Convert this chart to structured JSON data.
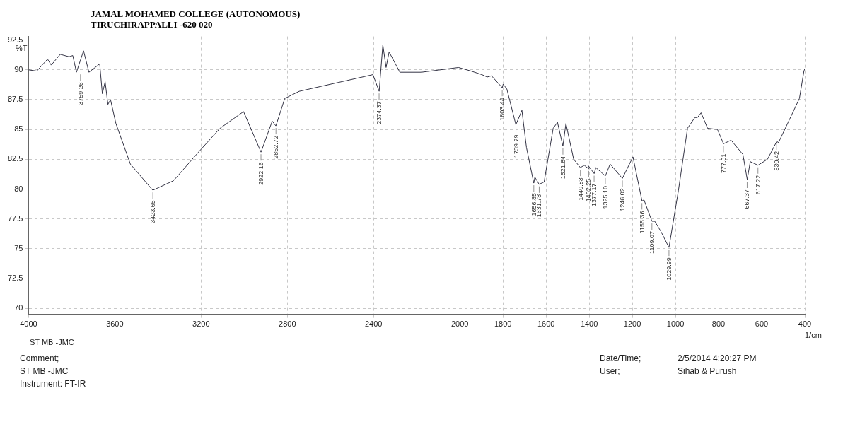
{
  "chart_data": {
    "type": "line",
    "title": "JAMAL MOHAMED COLLEGE (AUTONOMOUS)",
    "subtitle": "TIRUCHIRAPPALLI -620 020",
    "xlabel": "1/cm",
    "ylabel": "%T",
    "xlim": [
      4000,
      400
    ],
    "xticks": [
      4000,
      3600,
      3200,
      2800,
      2400,
      2000,
      1800,
      1600,
      1400,
      1200,
      1000,
      800,
      600,
      400
    ],
    "ylim": [
      69.5,
      92.8
    ],
    "yticks": [
      70,
      72.5,
      75,
      77.5,
      80,
      82.5,
      85,
      87.5,
      90,
      92.5
    ],
    "grid": true,
    "legend": false,
    "marker": "none",
    "line_style": "solid",
    "series": [
      {
        "color": "#333344",
        "x": [
          4000,
          3962,
          3912,
          3895,
          3853,
          3812,
          3795,
          3778,
          3745,
          3720,
          3670,
          3658,
          3645,
          3632,
          3620,
          3595,
          3528,
          3424,
          3328,
          3212,
          3112,
          3003,
          2922,
          2870,
          2853,
          2812,
          2745,
          2403,
          2374,
          2357,
          2342,
          2328,
          2278,
          2178,
          2006,
          1948,
          1898,
          1873,
          1853,
          1803,
          1799,
          1782,
          1740,
          1712,
          1691,
          1657,
          1652,
          1632,
          1609,
          1567,
          1547,
          1522,
          1508,
          1472,
          1441,
          1423,
          1402,
          1406,
          1377,
          1369,
          1325,
          1303,
          1246,
          1197,
          1155,
          1146,
          1109,
          1096,
          1066,
          1030,
          986,
          944,
          910,
          898,
          881,
          851,
          805,
          777,
          742,
          687,
          667,
          653,
          617,
          573,
          530,
          522,
          472,
          425,
          404,
          400
        ],
        "values": [
          90.0,
          89.9,
          90.9,
          90.4,
          91.3,
          91.1,
          91.2,
          89.8,
          91.6,
          89.8,
          90.5,
          88.0,
          89.0,
          87.1,
          87.5,
          85.5,
          82.1,
          79.9,
          80.7,
          83.1,
          85.1,
          86.5,
          83.1,
          85.7,
          85.3,
          87.6,
          88.2,
          89.6,
          88.2,
          92.1,
          90.2,
          91.5,
          89.8,
          89.8,
          90.2,
          89.9,
          89.6,
          89.4,
          89.5,
          88.5,
          88.8,
          88.4,
          85.4,
          86.6,
          83.5,
          80.5,
          81.0,
          80.4,
          80.6,
          85.1,
          85.6,
          83.6,
          85.5,
          82.5,
          81.8,
          82.0,
          81.7,
          82.0,
          81.3,
          81.8,
          81.1,
          82.1,
          80.9,
          82.7,
          79.0,
          79.1,
          77.3,
          77.3,
          76.4,
          75.1,
          79.9,
          85.1,
          86.0,
          86.0,
          86.4,
          85.1,
          85.0,
          83.8,
          84.1,
          82.9,
          80.8,
          82.3,
          82.0,
          82.5,
          84.0,
          83.9,
          85.8,
          87.6,
          89.9,
          90.1
        ]
      }
    ],
    "annotations": [
      "ST MB -JMC",
      "Comment;",
      "Date/Time;",
      "2/5/2014 4:20:27 PM",
      "ST MB -JMC",
      "User;",
      "Sihab & Purush",
      "Instrument: FT-IR",
      {
        "text": "3759.26",
        "x": 3759.26,
        "y": 89.8
      },
      {
        "text": "3423.65",
        "x": 3423.65,
        "y": 79.9
      },
      {
        "text": "2922.16",
        "x": 2922.16,
        "y": 83.1
      },
      {
        "text": "2852.72",
        "x": 2852.72,
        "y": 85.3
      },
      {
        "text": "2374.37",
        "x": 2374.37,
        "y": 88.2
      },
      {
        "text": "1803.44",
        "x": 1803.44,
        "y": 88.5
      },
      {
        "text": "1739.79",
        "x": 1739.79,
        "y": 85.4
      },
      {
        "text": "1656.85",
        "x": 1656.85,
        "y": 80.5
      },
      {
        "text": "1631.78",
        "x": 1631.78,
        "y": 80.4
      },
      {
        "text": "1521.84",
        "x": 1521.84,
        "y": 83.6
      },
      {
        "text": "1440.83",
        "x": 1440.83,
        "y": 81.8
      },
      {
        "text": "1402.25",
        "x": 1402.25,
        "y": 81.7
      },
      {
        "text": "1377.17",
        "x": 1377.17,
        "y": 81.3
      },
      {
        "text": "1325.10",
        "x": 1325.1,
        "y": 81.1
      },
      {
        "text": "1246.02",
        "x": 1246.02,
        "y": 80.9
      },
      {
        "text": "1155.36",
        "x": 1155.36,
        "y": 79.0
      },
      {
        "text": "1109.07",
        "x": 1109.07,
        "y": 77.3
      },
      {
        "text": "1029.99",
        "x": 1029.99,
        "y": 75.1
      },
      {
        "text": "777.31",
        "x": 777.31,
        "y": 83.8
      },
      {
        "text": "667.37",
        "x": 667.37,
        "y": 80.8
      },
      {
        "text": "617.22",
        "x": 617.22,
        "y": 82.0
      },
      {
        "text": "530.42",
        "x": 530.42,
        "y": 84.0
      }
    ]
  }
}
